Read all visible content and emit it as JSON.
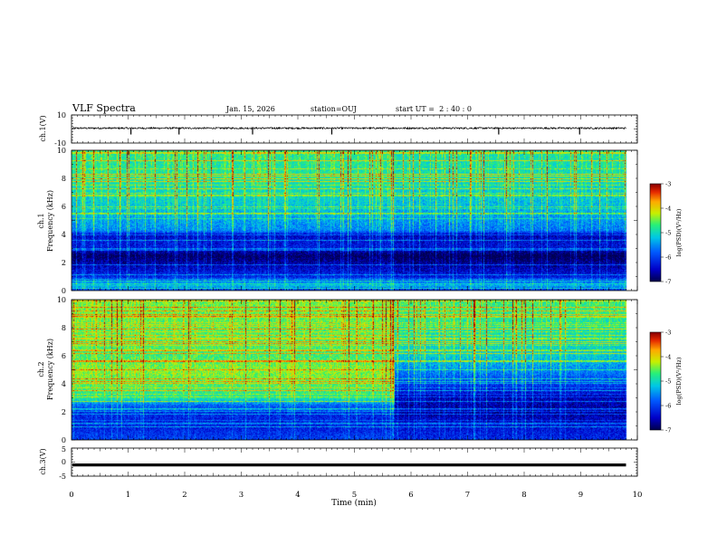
{
  "header": {
    "title": "VLF Spectra",
    "date": "Jan. 15, 2026",
    "station": "station=OUJ",
    "start": "start UT =  2 : 40 : 0"
  },
  "chart_data": {
    "type": "heatmap",
    "title": "VLF Spectra",
    "xlabel": "Time (min)",
    "xlim": [
      0,
      10
    ],
    "xticks": [
      "0",
      "1",
      "2",
      "3",
      "4",
      "5",
      "6",
      "7",
      "8",
      "9",
      "10"
    ],
    "data_end_min": 9.8,
    "panels": [
      {
        "id": "ch1-waveform",
        "kind": "line",
        "ylabel": "ch.1(V)",
        "ylim": [
          -10,
          10
        ],
        "yticks": [
          "10",
          "-10"
        ],
        "mean_value": 0.6,
        "noise_amplitude": 0.6,
        "spikes_min": [
          1.05,
          1.9,
          3.2,
          4.6,
          7.55,
          8.98
        ]
      },
      {
        "id": "ch1-spectrogram",
        "kind": "heatmap",
        "ylabel_line1": "ch.1",
        "ylabel_line2": "Frequency (kHz)",
        "ylim": [
          0,
          10
        ],
        "yticks": [
          "0",
          "2",
          "4",
          "6",
          "8",
          "10"
        ],
        "colorbar": {
          "label": "log(PSD)(V²/Hz)",
          "range": [
            -7,
            -3
          ],
          "ticks": [
            "-3",
            "-4",
            "-5",
            "-6",
            "-7"
          ]
        },
        "profile_khz_logpsd": [
          [
            0,
            -6.2
          ],
          [
            0.4,
            -5.2
          ],
          [
            1.0,
            -6.2
          ],
          [
            2.0,
            -6.7
          ],
          [
            2.5,
            -7.0
          ],
          [
            3.2,
            -6.3
          ],
          [
            4.0,
            -6.5
          ],
          [
            4.3,
            -5.6
          ],
          [
            6.0,
            -5.2
          ],
          [
            8.0,
            -4.9
          ],
          [
            10.0,
            -4.8
          ]
        ],
        "change_at_min": 5.7,
        "change_offset": -0.1
      },
      {
        "id": "ch2-spectrogram",
        "kind": "heatmap",
        "ylabel_line1": "ch.2",
        "ylabel_line2": "Frequency (kHz)",
        "ylim": [
          0,
          10
        ],
        "yticks": [
          "0",
          "2",
          "4",
          "6",
          "8",
          "10"
        ],
        "colorbar": {
          "label": "log(PSD)(V²/Hz)",
          "range": [
            -7,
            -3
          ],
          "ticks": [
            "-3",
            "-4",
            "-5",
            "-6",
            "-7"
          ]
        },
        "profile_khz_logpsd": [
          [
            0,
            -6.0
          ],
          [
            1.0,
            -6.3
          ],
          [
            2.0,
            -6.2
          ],
          [
            2.5,
            -5.8
          ],
          [
            3.0,
            -4.9
          ],
          [
            4.0,
            -4.6
          ],
          [
            5.0,
            -4.4
          ],
          [
            6.0,
            -4.7
          ],
          [
            8.0,
            -4.6
          ],
          [
            10.0,
            -4.5
          ]
        ],
        "change_at_min": 5.7,
        "after_profile_khz_logpsd": [
          [
            0,
            -6.2
          ],
          [
            1.0,
            -6.4
          ],
          [
            2.0,
            -6.7
          ],
          [
            3.0,
            -6.6
          ],
          [
            4.0,
            -6.1
          ],
          [
            5.0,
            -5.6
          ],
          [
            6.0,
            -5.2
          ],
          [
            8.0,
            -4.9
          ],
          [
            10.0,
            -4.7
          ]
        ]
      },
      {
        "id": "ch3-waveform",
        "kind": "line",
        "ylabel": "ch.3(V)",
        "ylim": [
          -5,
          5
        ],
        "yticks": [
          "5",
          "0",
          "-5"
        ],
        "mean_value": -1.0
      }
    ]
  }
}
